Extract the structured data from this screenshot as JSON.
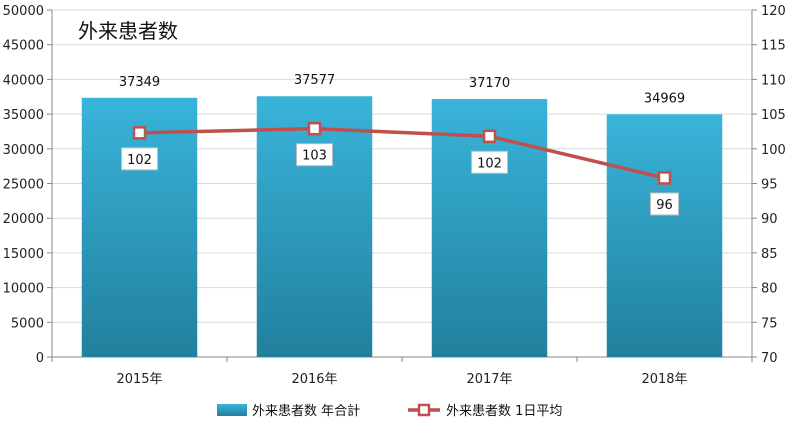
{
  "chart_data": {
    "type": "bar",
    "title": "外来患者数",
    "categories": [
      "2015年",
      "2016年",
      "2017年",
      "2018年"
    ],
    "series": [
      {
        "name": "外来患者数 年合計",
        "type": "bar",
        "axis": "left",
        "values": [
          37349,
          37577,
          37170,
          34969
        ],
        "color": "#31A8CF"
      },
      {
        "name": "外来患者数 1日平均",
        "type": "line",
        "axis": "right",
        "values": [
          102.3,
          102.9,
          101.8,
          95.8
        ],
        "labels": [
          "102",
          "103",
          "102",
          "96"
        ],
        "color": "#C0504D"
      }
    ],
    "y_left": {
      "min": 0,
      "max": 50000,
      "ticks": [
        "0",
        "5000",
        "10000",
        "15000",
        "20000",
        "25000",
        "30000",
        "35000",
        "40000",
        "45000",
        "50000"
      ]
    },
    "y_right": {
      "min": 70,
      "max": 120,
      "ticks": [
        "70",
        "75",
        "80",
        "85",
        "90",
        "95",
        "100",
        "105",
        "110",
        "115",
        "120"
      ]
    },
    "grid": true,
    "legend_position": "bottom"
  }
}
